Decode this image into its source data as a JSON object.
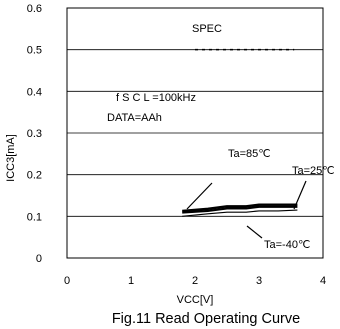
{
  "figure": {
    "caption": "Fig.11 Read Operating Curve"
  },
  "chart_data": {
    "type": "line",
    "xlabel": "VCC[V]",
    "ylabel": "ICC3[mA]",
    "xlim": [
      0,
      4
    ],
    "ylim": [
      0,
      0.6
    ],
    "x_ticks": [
      0,
      1,
      2,
      3,
      4
    ],
    "y_ticks": [
      0,
      0.1,
      0.2,
      0.3,
      0.4,
      0.5,
      0.6
    ],
    "x_tick_labels": [
      "0",
      "1",
      "2",
      "3",
      "4"
    ],
    "y_tick_labels": [
      "0",
      "0.1",
      "0.2",
      "0.3",
      "0.4",
      "0.5",
      "0.6"
    ],
    "grid": true,
    "series": [
      {
        "name": "Ta=85℃",
        "x": [
          1.8,
          2.2,
          2.5,
          2.8,
          3.0,
          3.3,
          3.6
        ],
        "y": [
          0.113,
          0.118,
          0.124,
          0.124,
          0.128,
          0.128,
          0.128
        ]
      },
      {
        "name": "Ta=25℃",
        "x": [
          1.8,
          2.2,
          2.5,
          2.8,
          3.0,
          3.3,
          3.6
        ],
        "y": [
          0.109,
          0.113,
          0.119,
          0.119,
          0.123,
          0.123,
          0.123
        ]
      },
      {
        "name": "Ta=-40℃",
        "x": [
          1.8,
          2.2,
          2.5,
          2.8,
          3.0,
          3.3,
          3.6
        ],
        "y": [
          0.1,
          0.106,
          0.11,
          0.11,
          0.113,
          0.113,
          0.115
        ]
      }
    ],
    "spec": {
      "label": "SPEC",
      "value": 0.5,
      "x_range": [
        2.0,
        3.55
      ]
    },
    "conditions": [
      "f S C L =100kHz",
      "DATA=AAh"
    ]
  }
}
